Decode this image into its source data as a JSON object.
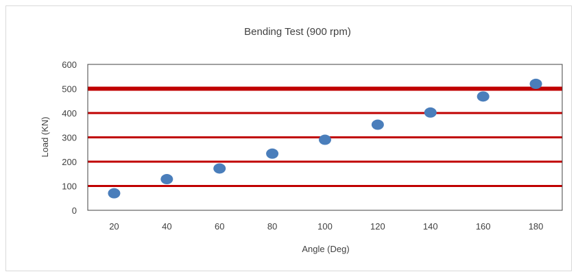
{
  "chart_data": {
    "type": "scatter",
    "title": "Bending Test (900 rpm)",
    "xlabel": "Angle (Deg)",
    "ylabel": "Load (KN)",
    "x_ticks": [
      "20",
      "40",
      "60",
      "80",
      "100",
      "120",
      "140",
      "160",
      "180"
    ],
    "y_ticks": [
      "0",
      "100",
      "200",
      "300",
      "400",
      "500",
      "600"
    ],
    "ylim": [
      0,
      600
    ],
    "x": [
      20,
      40,
      60,
      80,
      100,
      120,
      140,
      160,
      180
    ],
    "y": [
      70,
      128,
      172,
      233,
      290,
      352,
      402,
      468,
      520
    ],
    "gridlines": [
      100,
      200,
      300,
      400,
      500
    ],
    "highlight_gridline": 500,
    "marker_color": "#4a7ebb",
    "gridline_color": "#c00000",
    "grid": true,
    "legend": "none"
  }
}
